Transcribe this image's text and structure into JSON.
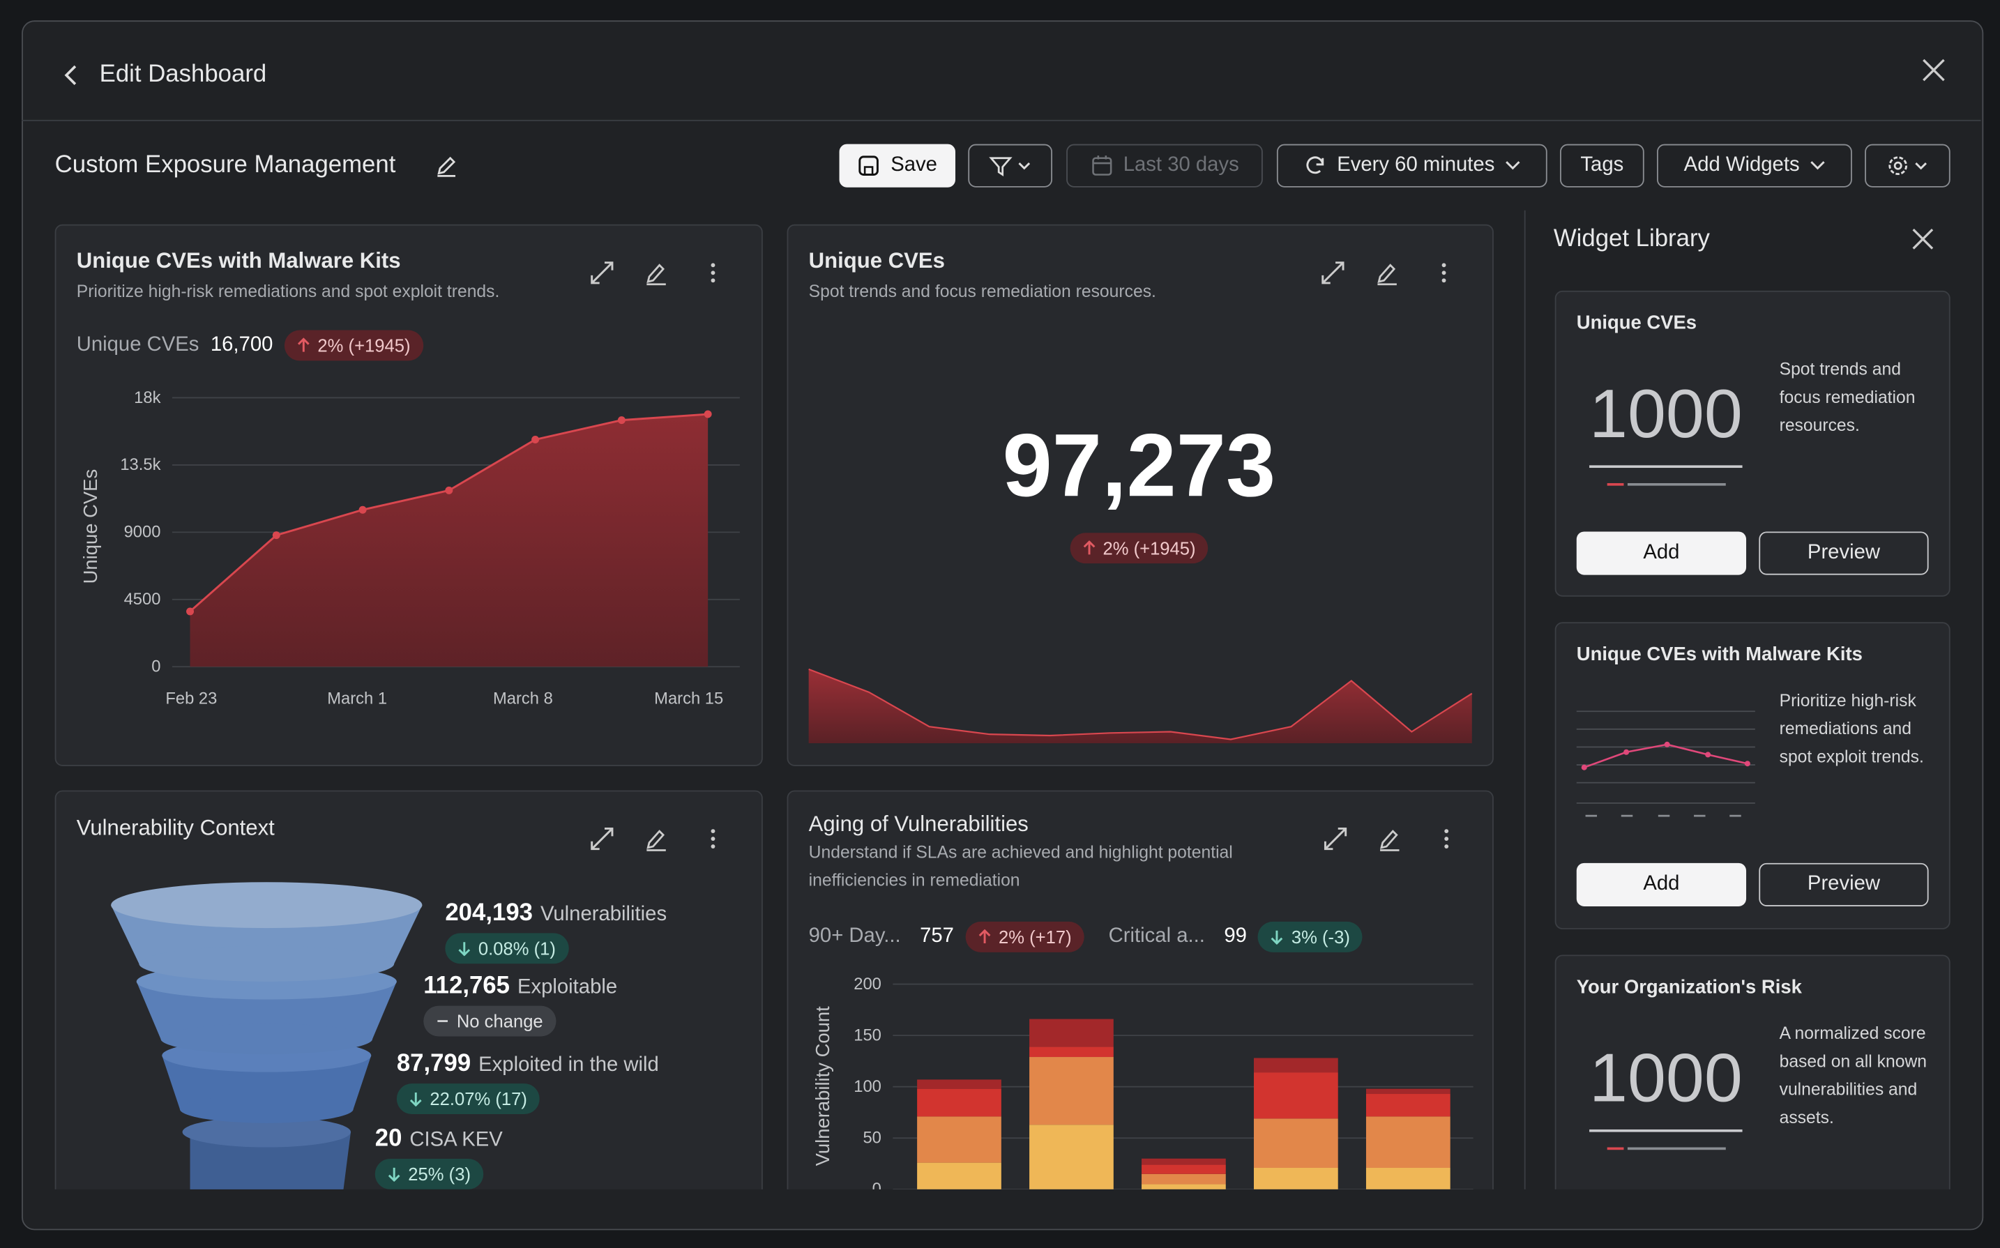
{
  "header": {
    "title": "Edit Dashboard"
  },
  "toolbar": {
    "name": "Custom Exposure Management",
    "save": "Save",
    "date_range": "Last 30 days",
    "refresh": "Every 60 minutes",
    "tags": "Tags",
    "add_widgets": "Add Widgets"
  },
  "widgets": [
    {
      "title": "Unique CVEs with Malware Kits",
      "subtitle": "Prioritize high-risk remediations and spot exploit trends.",
      "metric_label": "Unique CVEs",
      "metric_value": "16,700",
      "change": "2% (+1945)",
      "chart_data": {
        "type": "area",
        "y_label": "Unique CVEs",
        "categories": [
          null,
          null,
          null,
          null,
          null,
          null,
          null
        ],
        "x_labels": [
          "Feb 23",
          "March 1",
          "March 8",
          "March 15"
        ],
        "values": [
          3700,
          8800,
          10500,
          11800,
          15200,
          16500,
          16900
        ],
        "color": "#d9474f",
        "ylim": [
          0,
          18000
        ],
        "yticks": [
          0,
          4500,
          9000,
          {
            "value": 13500,
            "label": "13.5k"
          },
          {
            "value": 18000,
            "label": "18k"
          }
        ],
        "grid": true
      }
    },
    {
      "title": "Unique CVEs",
      "subtitle": "Spot trends and focus remediation resources.",
      "metric_value": "97,273",
      "change": "2% (+1945)",
      "chart_data": {
        "type": "sparkline",
        "values": [
          58,
          40,
          13,
          7,
          6,
          8,
          9,
          3,
          13,
          49,
          9,
          39
        ],
        "ylim": [
          0,
          60
        ],
        "color": "#d9474f"
      }
    },
    {
      "title": "Vulnerability Context",
      "stages": [
        {
          "value": "204,193",
          "label": "Vulnerabilities",
          "change": "0.08% (1)"
        },
        {
          "value": "112,765",
          "label": "Exploitable",
          "change": "No change"
        },
        {
          "value": "87,799",
          "label": "Exploited in the wild",
          "change": "22.07% (17)"
        },
        {
          "value": "20",
          "label": "CISA KEV",
          "change": "25% (3)"
        }
      ]
    },
    {
      "title": "Aging of Vulnerabilities",
      "subtitle": "Understand if SLAs are achieved and highlight potential inefficiencies in remediation",
      "metrics": [
        {
          "label": "90+ Day...",
          "value": "757",
          "change": "2% (+17)"
        },
        {
          "label": "Critical a...",
          "value": "99",
          "change": "3% (-3)"
        }
      ],
      "chart_data": {
        "type": "stacked_bar",
        "y_label": "Vulnerability Count",
        "categories": [
          null,
          null,
          null,
          null,
          null
        ],
        "series": [
          {
            "color": "#efb757",
            "values": [
              26,
              63,
              5,
              21,
              21
            ]
          },
          {
            "color": "#e2874a",
            "values": [
              45,
              66,
              10,
              48,
              50
            ]
          },
          {
            "color": "#d2342f",
            "values": [
              27,
              10,
              9,
              45,
              22
            ]
          },
          {
            "color": "#a3282a",
            "values": [
              9,
              27,
              6,
              14,
              5
            ]
          }
        ],
        "ylim": [
          0,
          200
        ],
        "yticks": [
          0,
          50,
          100,
          150,
          200
        ],
        "grid": true
      }
    }
  ],
  "library": {
    "title": "Widget Library",
    "items": [
      {
        "title": "Unique CVEs",
        "number": "1000",
        "description": "Spot trends and focus remediation resources.",
        "add": "Add",
        "preview": "Preview"
      },
      {
        "title": "Unique CVEs with Malware Kits",
        "description": "Prioritize high-risk remediations and spot exploit trends.",
        "add": "Add",
        "preview": "Preview"
      },
      {
        "title": "Your Organization's Risk",
        "number": "1000",
        "description": "A normalized score based on all known vulnerabilities and assets."
      }
    ]
  }
}
